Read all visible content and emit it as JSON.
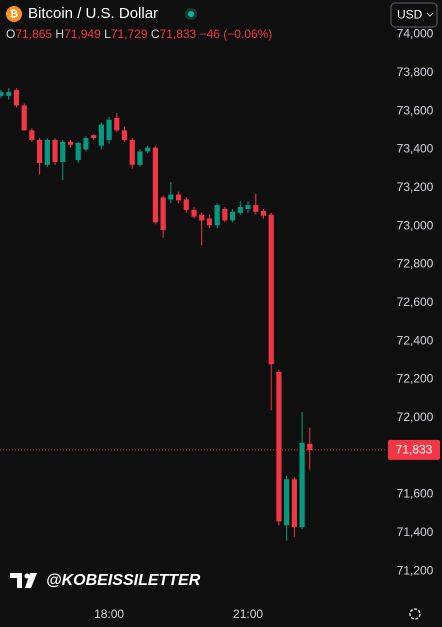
{
  "chart_data": {
    "type": "candlestick",
    "title": "Bitcoin / U.S. Dollar",
    "currency": "USD",
    "watermark": "@KOBEISSILETTER",
    "ohlc_header": {
      "o": "O",
      "open": {
        "value": 71865,
        "label": "71,865"
      },
      "h": "H",
      "high": {
        "value": 71949,
        "label": "71,949"
      },
      "l": "L",
      "low": {
        "value": 71729,
        "label": "71,729"
      },
      "c": "C",
      "close": {
        "value": 71833,
        "label": "71,833"
      },
      "change": {
        "value": -46,
        "label": "−46"
      },
      "change_pct": {
        "value": -0.06,
        "label": "(−0.06%)"
      }
    },
    "current_price": {
      "value": 71833,
      "label": "71,833"
    },
    "categories": [
      null,
      null,
      null,
      null,
      null,
      null,
      null,
      null,
      null,
      null,
      null,
      null,
      null,
      null,
      "18:00",
      null,
      null,
      null,
      null,
      null,
      null,
      null,
      null,
      null,
      null,
      null,
      null,
      null,
      null,
      null,
      null,
      null,
      "21:00",
      null,
      null,
      null,
      null,
      null,
      null,
      null,
      null
    ],
    "open": [
      73680,
      73680,
      73710,
      73630,
      73500,
      73450,
      73320,
      73450,
      73335,
      73440,
      73345,
      73400,
      73475,
      73420,
      73450,
      73565,
      73500,
      73450,
      73320,
      73390,
      73410,
      73150,
      73140,
      73165,
      73140,
      73085,
      73060,
      73040,
      73005,
      73090,
      73030,
      73070,
      73090,
      73110,
      73080,
      73060,
      72240,
      71440,
      71680,
      71430,
      71865
    ],
    "high": [
      73710,
      73720,
      73720,
      73640,
      73510,
      73460,
      73460,
      73460,
      73450,
      73450,
      73440,
      73470,
      73480,
      73540,
      73570,
      73590,
      73520,
      73460,
      73400,
      73420,
      73420,
      73160,
      73230,
      73180,
      73150,
      73100,
      73070,
      73060,
      73120,
      73100,
      73090,
      73130,
      73130,
      73170,
      73090,
      73070,
      72250,
      71700,
      71690,
      72030,
      71949
    ],
    "low": [
      73670,
      73660,
      73620,
      73500,
      73440,
      73270,
      73310,
      73320,
      73240,
      73410,
      73330,
      73390,
      73450,
      73400,
      73430,
      73490,
      73440,
      73300,
      73310,
      73380,
      73010,
      72940,
      73120,
      73120,
      73070,
      73040,
      72900,
      72990,
      72990,
      73020,
      73020,
      73060,
      73070,
      73060,
      73040,
      72040,
      71440,
      71360,
      71380,
      71420,
      71729
    ],
    "close": [
      73700,
      73700,
      73630,
      73500,
      73450,
      73330,
      73450,
      73335,
      73440,
      73425,
      73435,
      73460,
      73460,
      73530,
      73555,
      73500,
      73450,
      73320,
      73390,
      73410,
      73020,
      72980,
      73165,
      73135,
      73085,
      73050,
      73030,
      73005,
      73110,
      73030,
      73075,
      73100,
      73110,
      73075,
      73055,
      72280,
      71460,
      71680,
      71430,
      71870,
      71833
    ],
    "up_color": "#089981",
    "down_color": "#f23645",
    "ylim": [
      71050,
      74180
    ],
    "yticks": [
      {
        "value": 74000,
        "label": "74,000"
      },
      {
        "value": 73800,
        "label": "73,800"
      },
      {
        "value": 73600,
        "label": "73,600"
      },
      {
        "value": 73400,
        "label": "73,400"
      },
      {
        "value": 73200,
        "label": "73,200"
      },
      {
        "value": 73000,
        "label": "73,000"
      },
      {
        "value": 72800,
        "label": "72,800"
      },
      {
        "value": 72600,
        "label": "72,600"
      },
      {
        "value": 72400,
        "label": "72,400"
      },
      {
        "value": 72200,
        "label": "72,200"
      },
      {
        "value": 72000,
        "label": "72,000"
      },
      {
        "value": 71600,
        "label": "71,600"
      },
      {
        "value": 71400,
        "label": "71,400"
      },
      {
        "value": 71200,
        "label": "71,200"
      }
    ]
  }
}
